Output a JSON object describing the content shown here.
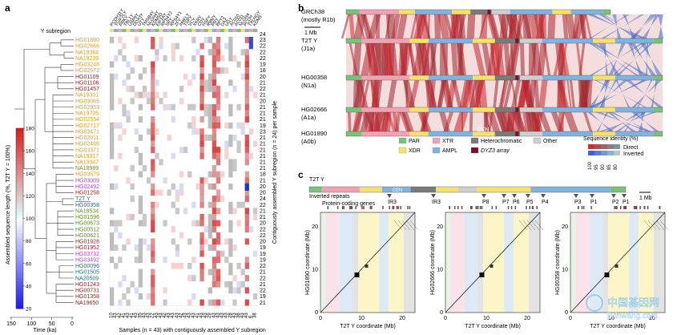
{
  "panel_a": {
    "letter": "a",
    "subregion_header": "Y subregion",
    "genes": [
      "PCDH11Y",
      "TGIF2LY",
      "PRKY",
      "TBL1Y",
      "USP9Y",
      "DDX3Y",
      "UTY",
      "TMSB4Y",
      "NLGN4Y",
      "KDM5D",
      "EIF1AY",
      "RPS4Y2",
      "SRY",
      "RPS4Y1",
      "ZFY",
      "AMELY",
      "TSPY",
      "VCY",
      "XKRY",
      "CDY",
      "HSFY",
      "RBMY",
      "PRY",
      "BPY2",
      "DAZ",
      "UGY",
      "AC010",
      "AC011",
      "NLGN4",
      "PCDH",
      "TXLNGY",
      "KDM5"
    ],
    "samples": [
      {
        "name": "HG01890",
        "color": "#d99a1c",
        "count": "23"
      },
      {
        "name": "HG02666",
        "color": "#d99a1c",
        "count": "22"
      },
      {
        "name": "NA19384",
        "color": "#d99a1c",
        "count": "22"
      },
      {
        "name": "NA19239",
        "color": "#d99a1c",
        "count": "22"
      },
      {
        "name": "HG03248",
        "color": "#d99a1c",
        "count": "19"
      },
      {
        "name": "HG02572",
        "color": "#d99a1c",
        "count": "18"
      },
      {
        "name": "HG01109",
        "color": "#8b1a1a",
        "count": "20"
      },
      {
        "name": "HG01106",
        "color": "#8b1a1a",
        "count": "21"
      },
      {
        "name": "HG01457",
        "color": "#8b1a1a",
        "count": "22"
      },
      {
        "name": "NA19331",
        "color": "#d99a1c",
        "count": "21"
      },
      {
        "name": "HG03065",
        "color": "#d99a1c",
        "count": "20"
      },
      {
        "name": "HG02953",
        "color": "#d99a1c",
        "count": "21"
      },
      {
        "name": "NA19705",
        "color": "#d99a1c",
        "count": "21"
      },
      {
        "name": "HG02554",
        "color": "#d99a1c",
        "count": "21"
      },
      {
        "name": "HG02717",
        "color": "#d99a1c",
        "count": "19"
      },
      {
        "name": "HG03471",
        "color": "#d99a1c",
        "count": "23"
      },
      {
        "name": "HG02011",
        "color": "#d99a1c",
        "count": "21"
      },
      {
        "name": "HG02486",
        "color": "#d99a1c",
        "count": "21"
      },
      {
        "name": "HG03371",
        "color": "#d99a1c",
        "count": "21"
      },
      {
        "name": "NA19317",
        "color": "#d99a1c",
        "count": "21"
      },
      {
        "name": "NA19347",
        "color": "#d99a1c",
        "count": "21"
      },
      {
        "name": "NA18989",
        "color": "#7a8a1a",
        "count": "21"
      },
      {
        "name": "HG03579",
        "color": "#d99a1c",
        "count": "18"
      },
      {
        "name": "HG03009",
        "color": "#b040c0",
        "count": "21"
      },
      {
        "name": "HG02492",
        "color": "#b040c0",
        "count": "20"
      },
      {
        "name": "HG01258",
        "color": "#8b1a1a",
        "count": "20"
      },
      {
        "name": "T2T Y",
        "color": "#2070b0",
        "count": "24"
      },
      {
        "name": "HG00358",
        "color": "#1a6a8a",
        "count": "22"
      },
      {
        "name": "NA18534",
        "color": "#5a8a1a",
        "count": "21"
      },
      {
        "name": "HG01596",
        "color": "#5a8a1a",
        "count": "21"
      },
      {
        "name": "HG00673",
        "color": "#5a8a1a",
        "count": "20"
      },
      {
        "name": "HG00512",
        "color": "#5a8a1a",
        "count": "22"
      },
      {
        "name": "HG00621",
        "color": "#5a8a1a",
        "count": "22"
      },
      {
        "name": "HG01928",
        "color": "#8b1a1a",
        "count": "20"
      },
      {
        "name": "HG01952",
        "color": "#8b1a1a",
        "count": "19"
      },
      {
        "name": "HG03732",
        "color": "#b040c0",
        "count": "19"
      },
      {
        "name": "HG03492",
        "color": "#b040c0",
        "count": "19"
      },
      {
        "name": "HG00096",
        "color": "#1a6a8a",
        "count": "22"
      },
      {
        "name": "HG01505",
        "color": "#1a6a8a",
        "count": "21"
      },
      {
        "name": "NA20509",
        "color": "#1a6a8a",
        "count": "22"
      },
      {
        "name": "HG01243",
        "color": "#8b1a1a",
        "count": "21"
      },
      {
        "name": "HG00731",
        "color": "#8b1a1a",
        "count": "22"
      },
      {
        "name": "HG01358",
        "color": "#8b1a1a",
        "count": "19"
      },
      {
        "name": "NA19650",
        "color": "#8b1a1a",
        "count": "21"
      }
    ],
    "header_count": "24",
    "column_counts": [
      "10",
      "43",
      "42",
      "41",
      "43",
      "41",
      "43",
      "35",
      "43",
      "43",
      "22",
      "43",
      "43",
      "42",
      "43",
      "43",
      "43",
      "42",
      "43",
      "43",
      "43",
      "41",
      "43",
      "43",
      "29",
      "43",
      "43",
      "43",
      "43",
      "28",
      "43",
      "38",
      "43",
      "43",
      "6",
      "38"
    ],
    "colorbar": {
      "title": "Assembled sequence length (%, T2T Y = 100%)",
      "ticks": [
        "180",
        "160",
        "140",
        "120",
        "100",
        "80",
        "60",
        "40",
        "20"
      ]
    },
    "time_axis": {
      "label": "Time (ka)",
      "ticks": [
        "150",
        "100",
        "50",
        "0"
      ]
    },
    "x_label": "Samples (n = 43) with contiguously assembled Y subregion",
    "right_label": "Contiguously assembled Y subregion (n = 24) per sample"
  },
  "panel_b": {
    "letter": "b",
    "tracks": [
      {
        "name": "GRCh38",
        "sub": "(mostly R1b)"
      },
      {
        "name": "T2T Y",
        "sub": "(J1a)"
      },
      {
        "name": "HG00358",
        "sub": "(N1a)"
      },
      {
        "name": "HG02666",
        "sub": "(A1a)"
      },
      {
        "name": "HG01890",
        "sub": "(A0b)"
      }
    ],
    "scale_label": "1 Mb",
    "cen_label": "CEN",
    "legend": [
      {
        "label": "PAR",
        "color": "#79c27a"
      },
      {
        "label": "XTR",
        "color": "#f2a3b3"
      },
      {
        "label": "Heterochromatic",
        "color": "#7a7a7a"
      },
      {
        "label": "Other",
        "color": "#cfcfcf"
      },
      {
        "label": "XDR",
        "color": "#f7e16a"
      },
      {
        "label": "AMPL",
        "color": "#7fb3e0"
      },
      {
        "label": "DYZ3 array",
        "color": "#7a1030"
      }
    ],
    "identity": {
      "title": "Sequence identity (%)",
      "direct": "Direct",
      "inverted": "Inverted",
      "ticks": [
        "100",
        "95",
        "90",
        "85",
        "80"
      ]
    }
  },
  "panel_c": {
    "letter": "c",
    "track_title": "T2T Y",
    "inverted_repeats": "Inverted repeats",
    "markers": [
      "IR3",
      "IR3",
      "P8",
      "P7",
      "P6",
      "P5",
      "P4",
      "P3",
      "P1",
      "P2",
      "P1"
    ],
    "cen_label": "CEN",
    "scale_label": "1 Mb",
    "protein_coding": "Protein-coding genes",
    "plots": [
      {
        "ylabel": "HG01890 coordinate (Mb)",
        "xlabel": "T2T Y coordinate (Mb)"
      },
      {
        "ylabel": "HG02666 coordinate (Mb)",
        "xlabel": "T2T Y coordinate (Mb)"
      },
      {
        "ylabel": "HG00358 coordinate (Mb)",
        "xlabel": "T2T Y coordinate (Mb)"
      }
    ],
    "y_ticks": [
      "20",
      "10",
      "0"
    ],
    "x_ticks": [
      "0",
      "10",
      "20"
    ]
  },
  "watermark": {
    "cn": "中国基因网",
    "url": "jiyinwang.com"
  }
}
